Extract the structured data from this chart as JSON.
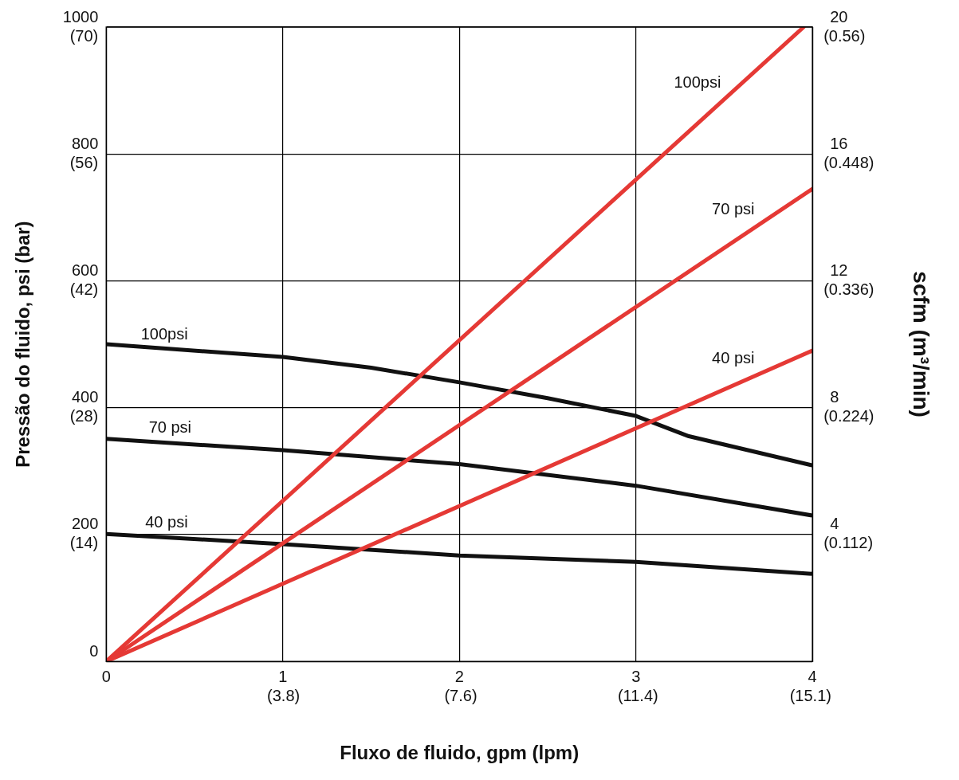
{
  "chart_data": {
    "type": "line",
    "xlabel": "Fluxo de fluido, gpm (lpm)",
    "ylabel": "Pressão do fluido, psi (bar)",
    "y2label": "scfm (m³/min)",
    "series": [
      {
        "color": "#111111",
        "x": [
          0,
          1,
          1.5,
          2,
          2.5,
          3,
          3.3,
          4
        ],
        "values": [
          500,
          480,
          463,
          440,
          415,
          387,
          355,
          309
        ]
      },
      {
        "color": "#111111",
        "x": [
          0,
          1,
          2,
          3,
          4
        ],
        "values": [
          351,
          333,
          311,
          277,
          230
        ]
      },
      {
        "color": "#111111",
        "x": [
          0,
          1,
          2,
          3,
          4
        ],
        "values": [
          201,
          185,
          167,
          157,
          138
        ]
      },
      {
        "color": "#e53935",
        "axis": "y2",
        "x": [
          0,
          3.95
        ],
        "values": [
          0,
          20
        ]
      },
      {
        "color": "#e53935",
        "axis": "y2",
        "x": [
          0,
          4
        ],
        "values": [
          0,
          14.9
        ]
      },
      {
        "color": "#e53935",
        "axis": "y2",
        "x": [
          0,
          4
        ],
        "values": [
          0,
          9.8
        ]
      }
    ],
    "xlim": [
      0,
      4
    ],
    "xticks": [
      0,
      1,
      2,
      3,
      4
    ],
    "x2lim": [
      0,
      15.14
    ],
    "x2ticks": [
      {
        "value": 3.8,
        "label": "(3.8)"
      },
      {
        "value": 7.6,
        "label": "(7.6)"
      },
      {
        "value": 11.4,
        "label": "(11.4)"
      },
      {
        "value": 15.1,
        "label": "(15.1)"
      }
    ],
    "ylim": [
      0,
      1000
    ],
    "yticks": [
      0,
      200,
      400,
      600,
      800,
      1000
    ],
    "y3lim": [
      0,
      70
    ],
    "y3ticks": [
      {
        "value": 14,
        "label": "(14)"
      },
      {
        "value": 28,
        "label": "(28)"
      },
      {
        "value": 42,
        "label": "(42)"
      },
      {
        "value": 56,
        "label": "(56)"
      },
      {
        "value": 70,
        "label": "(70)"
      }
    ],
    "y2lim": [
      0,
      20
    ],
    "y2ticks": [
      4,
      8,
      12,
      16,
      20
    ],
    "annotations": [
      {
        "text": "100psi",
        "x": 0.48,
        "y": 490
      },
      {
        "text": "70 psi",
        "x": 0.5,
        "y": 342
      },
      {
        "text": "40 psi",
        "x": 0.48,
        "y": 193
      },
      {
        "text": "100psi",
        "x": 3.5,
        "y": 886
      },
      {
        "text": "70 psi",
        "x": 3.69,
        "y": 687
      },
      {
        "text": "40 psi",
        "x": 3.69,
        "y": 452
      },
      "(0.112)",
      "(0.224)",
      "(0.336)",
      "(0.448)",
      "(0.56)"
    ],
    "grid": true,
    "legend": false,
    "marker": "none",
    "line_style": "solid"
  }
}
